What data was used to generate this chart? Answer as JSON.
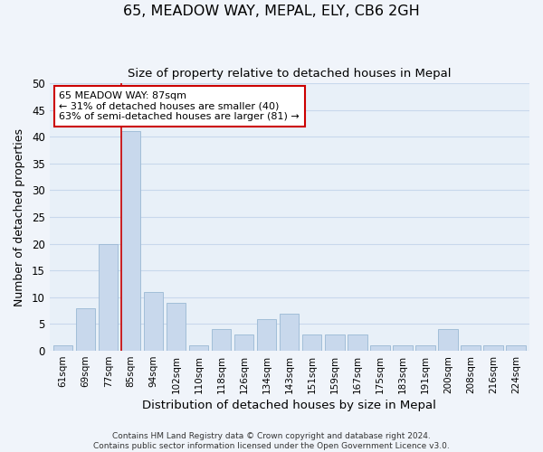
{
  "title_line1": "65, MEADOW WAY, MEPAL, ELY, CB6 2GH",
  "title_line2": "Size of property relative to detached houses in Mepal",
  "xlabel": "Distribution of detached houses by size in Mepal",
  "ylabel": "Number of detached properties",
  "categories": [
    "61sqm",
    "69sqm",
    "77sqm",
    "85sqm",
    "94sqm",
    "102sqm",
    "110sqm",
    "118sqm",
    "126sqm",
    "134sqm",
    "143sqm",
    "151sqm",
    "159sqm",
    "167sqm",
    "175sqm",
    "183sqm",
    "191sqm",
    "200sqm",
    "208sqm",
    "216sqm",
    "224sqm"
  ],
  "values": [
    1,
    8,
    20,
    41,
    11,
    9,
    1,
    4,
    3,
    6,
    7,
    3,
    3,
    3,
    1,
    1,
    1,
    4,
    1,
    1,
    1
  ],
  "bar_color": "#c8d8ec",
  "bar_edge_color": "#9ab8d4",
  "grid_color": "#c8d8ec",
  "background_color": "#e8f0f8",
  "fig_background": "#f0f4fa",
  "red_line_index": 3,
  "ylim": [
    0,
    50
  ],
  "annotation_title": "65 MEADOW WAY: 87sqm",
  "annotation_line2": "← 31% of detached houses are smaller (40)",
  "annotation_line3": "63% of semi-detached houses are larger (81) →",
  "annotation_box_color": "#ffffff",
  "annotation_border_color": "#cc0000",
  "footer_line1": "Contains HM Land Registry data © Crown copyright and database right 2024.",
  "footer_line2": "Contains public sector information licensed under the Open Government Licence v3.0."
}
